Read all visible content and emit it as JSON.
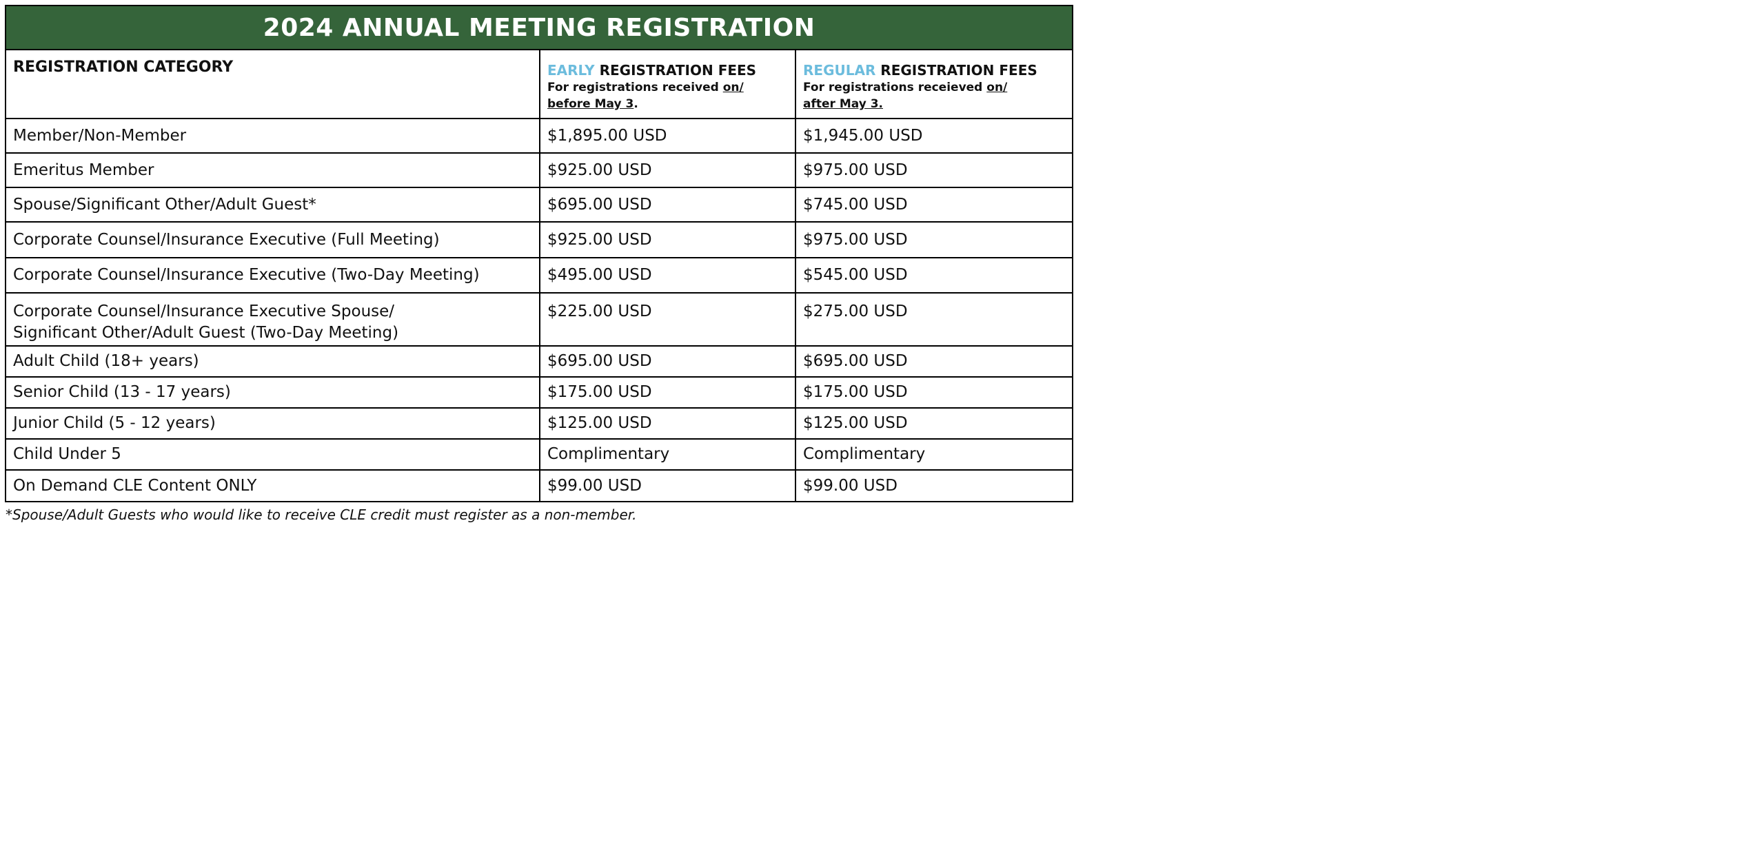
{
  "title": "2024 ANNUAL MEETING REGISTRATION",
  "headers": {
    "category": "REGISTRATION CATEGORY",
    "early": {
      "accent": "EARLY",
      "rest": " REGISTRATION FEES",
      "note_prefix": "For registrations received ",
      "note_underlined_1": "on/",
      "note_underlined_2": "before May 3",
      "note_suffix": "."
    },
    "regular": {
      "accent": "REGULAR",
      "rest": " REGISTRATION FEES",
      "note_prefix": "For registrations receieved ",
      "note_underlined_1": "on/",
      "note_underlined_2": "after May 3.",
      "note_suffix": ""
    }
  },
  "rows": [
    {
      "category": "Member/Non-Member",
      "early": "$1,895.00 USD",
      "regular": "$1,945.00 USD"
    },
    {
      "category": "Emeritus Member",
      "early": "$925.00 USD",
      "regular": "$975.00 USD"
    },
    {
      "category": "Spouse/Significant Other/Adult Guest*",
      "early": "$695.00 USD",
      "regular": "$745.00 USD"
    },
    {
      "category": "Corporate Counsel/Insurance Executive (Full Meeting)",
      "early": "$925.00 USD",
      "regular": "$975.00 USD"
    },
    {
      "category": "Corporate Counsel/Insurance Executive (Two-Day Meeting)",
      "early": "$495.00 USD",
      "regular": "$545.00 USD"
    },
    {
      "category_line1": "Corporate Counsel/Insurance Executive Spouse/",
      "category_line2": "Significant Other/Adult Guest (Two-Day Meeting)",
      "early": "$225.00 USD",
      "regular": "$275.00 USD"
    },
    {
      "category": "Adult Child (18+ years)",
      "early": "$695.00 USD",
      "regular": "$695.00 USD"
    },
    {
      "category": "Senior Child (13 - 17 years)",
      "early": "$175.00 USD",
      "regular": "$175.00 USD"
    },
    {
      "category": "Junior Child (5 - 12 years)",
      "early": "$125.00 USD",
      "regular": "$125.00 USD"
    },
    {
      "category": "Child Under 5",
      "early": "Complimentary",
      "regular": "Complimentary"
    },
    {
      "category": "On Demand CLE Content ONLY",
      "early": "$99.00 USD",
      "regular": "$99.00 USD"
    }
  ],
  "footnote": "*Spouse/Adult Guests who would like to receive CLE credit must register as a non-member.",
  "colors": {
    "title_bar": "#35643a",
    "accent": "#6cbcdd",
    "border": "#000000"
  }
}
